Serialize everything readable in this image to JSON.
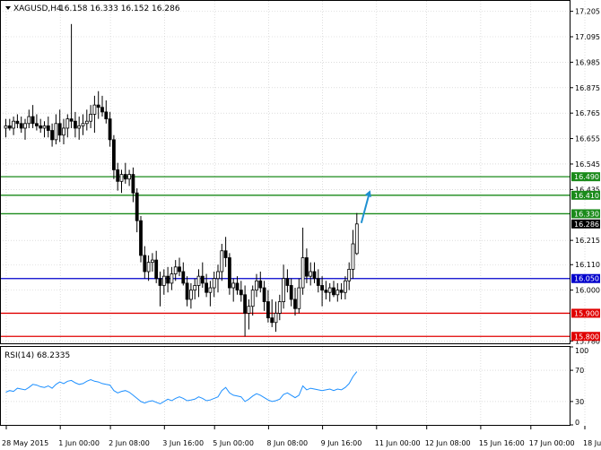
{
  "header": {
    "symbol": "XAGUSD,H4",
    "ohlc": "16.158 16.333 16.152 16.286"
  },
  "colors": {
    "background": "#ffffff",
    "grid": "#c8c8c8",
    "candle": "#000000",
    "blue_line": "#0000cc",
    "green_line": "#1a8a1a",
    "red_line": "#e00000",
    "arrow": "#1e90d0",
    "rsi_line": "#1e90ff",
    "last_price_label": "#000000"
  },
  "chart_data": [
    {
      "type": "candlestick",
      "title": "XAGUSD,H4",
      "ylim": [
        15.77,
        17.25
      ],
      "y_ticks": [
        "17.205",
        "17.095",
        "16.985",
        "16.875",
        "16.765",
        "16.655",
        "16.545",
        "16.435",
        "16.215",
        "16.110",
        "16.000",
        "15.780"
      ],
      "x_ticks": [
        "28 May 2015",
        "1 Jun 00:00",
        "2 Jun 08:00",
        "3 Jun 16:00",
        "5 Jun 00:00",
        "8 Jun 08:00",
        "9 Jun 16:00",
        "11 Jun 00:00",
        "12 Jun 08:00",
        "15 Jun 16:00",
        "17 Jun 00:00",
        "18 Jun 08:00"
      ],
      "x_tick_positions": [
        0,
        14,
        27,
        41,
        54,
        68,
        82,
        96,
        109,
        123,
        136,
        150
      ],
      "grid": true,
      "levels": [
        {
          "value": 16.49,
          "label": "16.490",
          "color": "#1a8a1a"
        },
        {
          "value": 16.41,
          "label": "16.410",
          "color": "#1a8a1a"
        },
        {
          "value": 16.33,
          "label": "16.330",
          "color": "#1a8a1a"
        },
        {
          "value": 16.05,
          "label": "16.050",
          "color": "#0000cc"
        },
        {
          "value": 15.9,
          "label": "15.900",
          "color": "#e00000"
        },
        {
          "value": 15.8,
          "label": "15.800",
          "color": "#e00000"
        }
      ],
      "last_price": {
        "value": 16.286,
        "label": "16.286"
      },
      "candles": [
        [
          16.7,
          16.74,
          16.66,
          16.71
        ],
        [
          16.71,
          16.74,
          16.69,
          16.7
        ],
        [
          16.7,
          16.75,
          16.67,
          16.73
        ],
        [
          16.73,
          16.76,
          16.7,
          16.72
        ],
        [
          16.72,
          16.75,
          16.68,
          16.7
        ],
        [
          16.7,
          16.74,
          16.65,
          16.72
        ],
        [
          16.72,
          16.78,
          16.7,
          16.75
        ],
        [
          16.75,
          16.8,
          16.7,
          16.72
        ],
        [
          16.72,
          16.76,
          16.69,
          16.71
        ],
        [
          16.71,
          16.74,
          16.68,
          16.7
        ],
        [
          16.7,
          16.73,
          16.66,
          16.71
        ],
        [
          16.71,
          16.75,
          16.66,
          16.69
        ],
        [
          16.69,
          16.72,
          16.62,
          16.65
        ],
        [
          16.65,
          16.76,
          16.63,
          16.72
        ],
        [
          16.72,
          16.78,
          16.64,
          16.67
        ],
        [
          16.67,
          16.74,
          16.63,
          16.7
        ],
        [
          16.7,
          16.76,
          16.66,
          16.74
        ],
        [
          16.74,
          17.15,
          16.7,
          16.73
        ],
        [
          16.73,
          16.77,
          16.66,
          16.7
        ],
        [
          16.7,
          16.75,
          16.65,
          16.71
        ],
        [
          16.71,
          16.76,
          16.67,
          16.72
        ],
        [
          16.72,
          16.78,
          16.69,
          16.73
        ],
        [
          16.73,
          16.8,
          16.7,
          16.76
        ],
        [
          16.76,
          16.84,
          16.68,
          16.8
        ],
        [
          16.8,
          16.86,
          16.74,
          16.79
        ],
        [
          16.79,
          16.84,
          16.75,
          16.77
        ],
        [
          16.77,
          16.82,
          16.72,
          16.74
        ],
        [
          16.74,
          16.77,
          16.62,
          16.65
        ],
        [
          16.65,
          16.67,
          16.48,
          16.52
        ],
        [
          16.52,
          16.55,
          16.43,
          16.47
        ],
        [
          16.47,
          16.52,
          16.42,
          16.5
        ],
        [
          16.5,
          16.55,
          16.46,
          16.48
        ],
        [
          16.48,
          16.52,
          16.45,
          16.5
        ],
        [
          16.5,
          16.53,
          16.38,
          16.42
        ],
        [
          16.42,
          16.44,
          16.25,
          16.3
        ],
        [
          16.3,
          16.32,
          16.12,
          16.15
        ],
        [
          16.15,
          16.19,
          16.05,
          16.08
        ],
        [
          16.08,
          16.15,
          16.04,
          16.12
        ],
        [
          16.12,
          16.16,
          16.08,
          16.13
        ],
        [
          16.13,
          16.17,
          16.03,
          16.05
        ],
        [
          16.05,
          16.08,
          15.93,
          16.02
        ],
        [
          16.02,
          16.09,
          15.98,
          16.06
        ],
        [
          16.06,
          16.1,
          15.99,
          16.03
        ],
        [
          16.03,
          16.1,
          16.0,
          16.07
        ],
        [
          16.07,
          16.13,
          16.04,
          16.1
        ],
        [
          16.1,
          16.14,
          16.06,
          16.08
        ],
        [
          16.08,
          16.12,
          16.02,
          16.03
        ],
        [
          16.03,
          16.06,
          15.93,
          15.96
        ],
        [
          15.96,
          16.03,
          15.92,
          16.0
        ],
        [
          16.0,
          16.05,
          15.96,
          16.02
        ],
        [
          16.02,
          16.09,
          15.97,
          16.06
        ],
        [
          16.06,
          16.12,
          16.01,
          16.03
        ],
        [
          16.03,
          16.07,
          15.97,
          15.99
        ],
        [
          15.99,
          16.04,
          15.93,
          16.01
        ],
        [
          16.01,
          16.08,
          15.97,
          16.05
        ],
        [
          16.05,
          16.11,
          15.99,
          16.08
        ],
        [
          16.08,
          16.2,
          16.04,
          16.17
        ],
        [
          16.17,
          16.23,
          16.1,
          16.14
        ],
        [
          16.14,
          16.16,
          15.98,
          16.01
        ],
        [
          16.01,
          16.05,
          15.95,
          16.03
        ],
        [
          16.03,
          16.06,
          15.98,
          16.0
        ],
        [
          16.0,
          16.04,
          15.95,
          15.98
        ],
        [
          15.98,
          16.02,
          15.8,
          15.9
        ],
        [
          15.9,
          15.96,
          15.83,
          15.93
        ],
        [
          15.93,
          16.02,
          15.89,
          16.0
        ],
        [
          16.0,
          16.07,
          15.97,
          16.04
        ],
        [
          16.04,
          16.08,
          15.99,
          16.01
        ],
        [
          16.01,
          16.04,
          15.91,
          15.95
        ],
        [
          15.95,
          16.0,
          15.86,
          15.88
        ],
        [
          15.88,
          15.96,
          15.84,
          15.86
        ],
        [
          15.86,
          15.95,
          15.82,
          15.9
        ],
        [
          15.9,
          15.98,
          15.87,
          15.95
        ],
        [
          15.95,
          16.11,
          15.92,
          16.05
        ],
        [
          16.05,
          16.09,
          15.99,
          16.02
        ],
        [
          16.02,
          16.05,
          15.93,
          15.96
        ],
        [
          15.96,
          16.01,
          15.89,
          15.92
        ],
        [
          15.92,
          16.05,
          15.9,
          16.01
        ],
        [
          16.01,
          16.27,
          15.98,
          16.14
        ],
        [
          16.14,
          16.18,
          16.03,
          16.06
        ],
        [
          16.06,
          16.12,
          16.02,
          16.08
        ],
        [
          16.08,
          16.12,
          16.03,
          16.05
        ],
        [
          16.05,
          16.09,
          15.99,
          16.02
        ],
        [
          16.02,
          16.06,
          15.93,
          16.0
        ],
        [
          16.0,
          16.04,
          15.96,
          15.99
        ],
        [
          15.99,
          16.03,
          15.95,
          16.01
        ],
        [
          16.01,
          16.04,
          15.97,
          15.98
        ],
        [
          15.98,
          16.03,
          15.95,
          16.0
        ],
        [
          16.0,
          16.03,
          15.96,
          15.99
        ],
        [
          15.99,
          16.06,
          15.96,
          16.04
        ],
        [
          16.04,
          16.12,
          16.0,
          16.09
        ],
        [
          16.09,
          16.26,
          16.05,
          16.2
        ],
        [
          16.158,
          16.333,
          16.152,
          16.286
        ]
      ]
    },
    {
      "type": "line",
      "title": "RSI(14) 68.2335",
      "ylim": [
        0,
        100
      ],
      "y_ticks": [
        "100",
        "70",
        "30",
        "0"
      ],
      "values": [
        42,
        44,
        43,
        47,
        46,
        45,
        48,
        52,
        51,
        49,
        48,
        50,
        47,
        52,
        55,
        53,
        56,
        57,
        54,
        52,
        53,
        56,
        58,
        56,
        55,
        53,
        52,
        51,
        44,
        41,
        43,
        44,
        42,
        38,
        34,
        30,
        28,
        30,
        31,
        29,
        27,
        30,
        33,
        31,
        34,
        36,
        34,
        31,
        32,
        33,
        36,
        34,
        31,
        32,
        34,
        36,
        44,
        48,
        41,
        38,
        37,
        36,
        30,
        33,
        37,
        40,
        38,
        35,
        32,
        30,
        31,
        33,
        39,
        41,
        38,
        35,
        38,
        50,
        45,
        47,
        46,
        45,
        44,
        45,
        46,
        44,
        46,
        45,
        48,
        53,
        62,
        68.2335
      ]
    }
  ]
}
